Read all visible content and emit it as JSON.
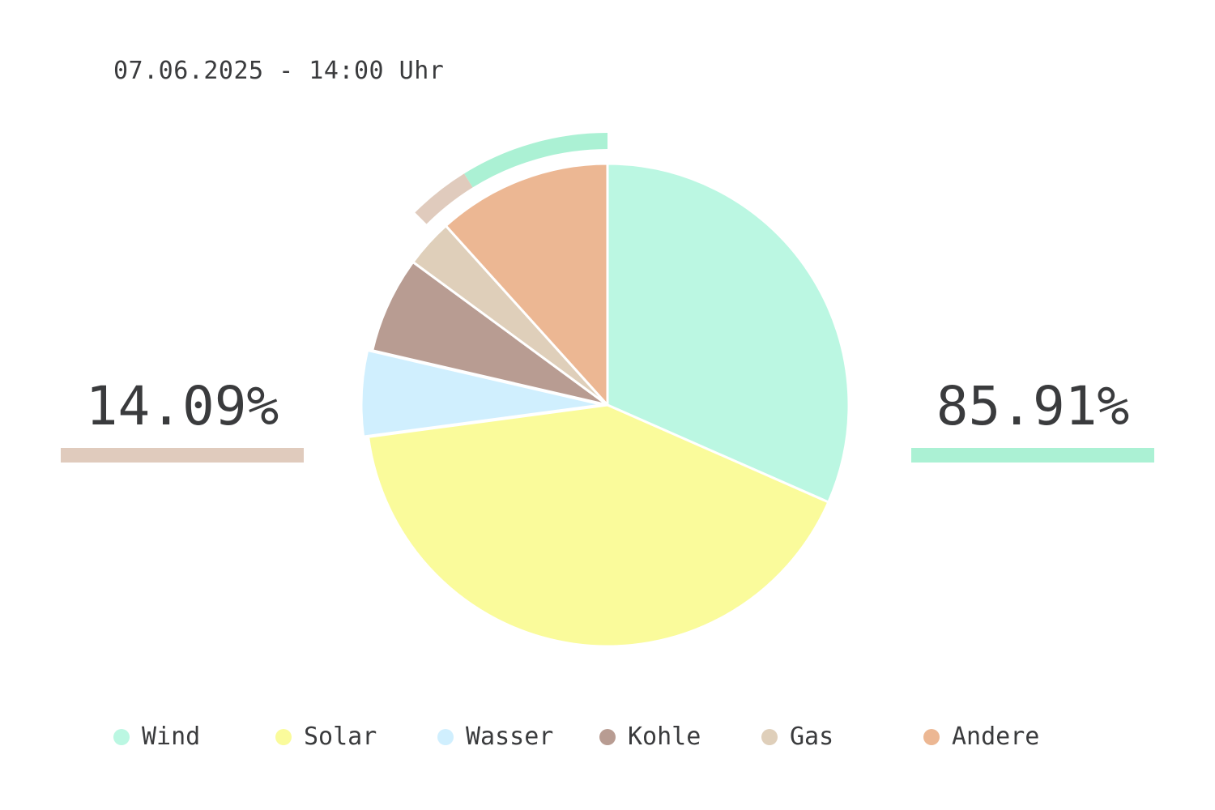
{
  "timestamp": "07.06.2025 - 14:00 Uhr",
  "shares": {
    "fossil": {
      "label": "14.09%",
      "value": 14.09,
      "color": "#e0cbbd"
    },
    "renewable": {
      "label": "85.91%",
      "value": 85.91,
      "color": "#abf1d4"
    }
  },
  "chart_data": {
    "type": "pie",
    "categories": [
      "Wind",
      "Solar",
      "Wasser",
      "Kohle",
      "Gas",
      "Andere"
    ],
    "values": [
      30.3,
      39.6,
      5.5,
      6.2,
      3.1,
      11.2
    ],
    "colors": [
      "#bbf7e2",
      "#fafb9b",
      "#d0effe",
      "#b89c92",
      "#dfcfba",
      "#ecb793"
    ],
    "start_angle": "12 o'clock",
    "direction": "clockwise",
    "exploded": [
      "Wasser"
    ],
    "legend": "bottom",
    "outer_rings": [
      {
        "name": "renewable-ring",
        "color": "#abf1d4",
        "value": 8.83
      },
      {
        "name": "fossil-ring",
        "color": "#e0cbbd",
        "value": 3.67
      }
    ]
  },
  "legend": {
    "items": [
      {
        "label": "Wind",
        "color": "#bbf7e2"
      },
      {
        "label": "Solar",
        "color": "#fafb9b"
      },
      {
        "label": "Wasser",
        "color": "#d0effe"
      },
      {
        "label": "Kohle",
        "color": "#b89c92"
      },
      {
        "label": "Gas",
        "color": "#dfcfba"
      },
      {
        "label": "Andere",
        "color": "#ecb793"
      }
    ]
  }
}
